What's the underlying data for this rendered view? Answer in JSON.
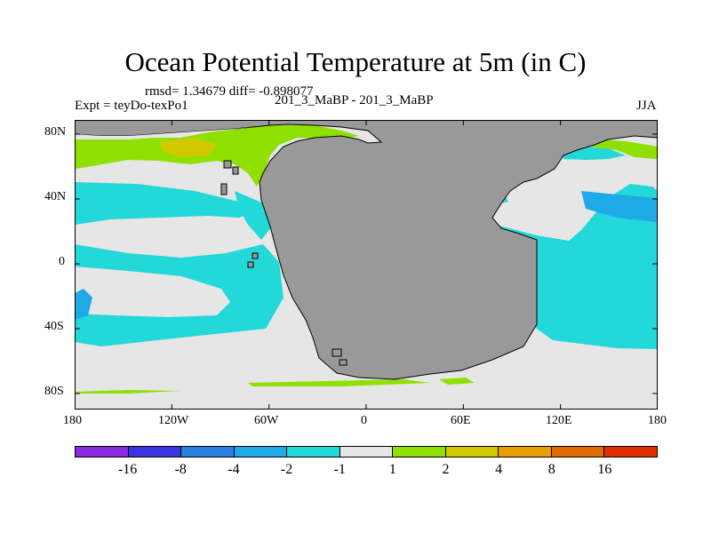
{
  "title": "Ocean Potential Temperature at 5m (in C)",
  "stats": "rmsd= 1.34679 diff= -0.898077",
  "left_label": "Expt = teyDo-texPo1",
  "center_label": "201_3_MaBP - 201_3_MaBP",
  "right_label": "JJA",
  "x_ticks": [
    "180",
    "120W",
    "60W",
    "0",
    "60E",
    "120E",
    "180"
  ],
  "y_ticks": [
    "80N",
    "40N",
    "0",
    "40S",
    "80S"
  ],
  "colorbar": {
    "labels": [
      "-16",
      "-8",
      "-4",
      "-2",
      "-1",
      "1",
      "2",
      "4",
      "8",
      "16"
    ],
    "colors": [
      "#8a2be2",
      "#3a35e0",
      "#2a7fe0",
      "#1fa9e6",
      "#22d8d8",
      "#e6e6e6",
      "#8fe000",
      "#d2c800",
      "#e8a000",
      "#e36a00",
      "#e03000"
    ]
  },
  "map_colors": {
    "land": "#999999",
    "neutral": "#e6e6e6",
    "cool": "#22d8d8",
    "cooler": "#1fa9e6",
    "warm": "#8fe000",
    "warmer": "#d2c800"
  }
}
